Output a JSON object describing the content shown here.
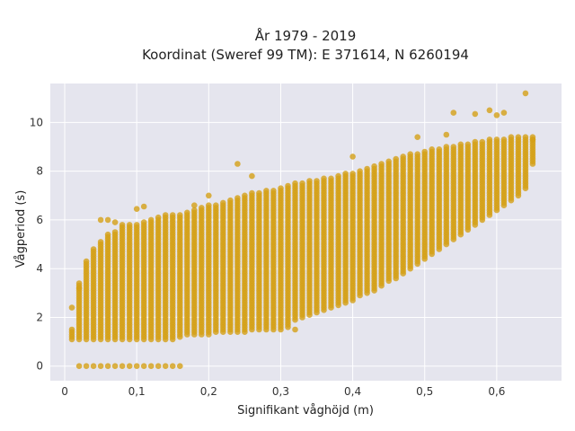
{
  "chart_data": {
    "type": "scatter",
    "title_line1": "År 1979 - 2019",
    "title_line2": "Koordinat (Sweref 99 TM): E 371614, N 6260194",
    "xlabel": "Signifikant våghöjd (m)",
    "ylabel": "Vågperiod (s)",
    "xlim": [
      -0.02,
      0.69
    ],
    "ylim": [
      -0.6,
      11.6
    ],
    "xticks": [
      0,
      0.1,
      0.2,
      0.3,
      0.4,
      0.5,
      0.6
    ],
    "xtick_labels": [
      "0",
      "0,1",
      "0,2",
      "0,3",
      "0,4",
      "0,5",
      "0,6"
    ],
    "yticks": [
      0,
      2,
      4,
      6,
      8,
      10
    ],
    "ytick_labels": [
      "0",
      "2",
      "4",
      "6",
      "8",
      "10"
    ],
    "grid": true,
    "background": "#e5e5ee",
    "marker_color": "#d4a017",
    "series": [
      {
        "x_bins": [
          0.01,
          0.02,
          0.03,
          0.04,
          0.05,
          0.06,
          0.07,
          0.08,
          0.09,
          0.1,
          0.11,
          0.12,
          0.13,
          0.14,
          0.15,
          0.16,
          0.17,
          0.18,
          0.19,
          0.2,
          0.21,
          0.22,
          0.23,
          0.24,
          0.25,
          0.26,
          0.27,
          0.28,
          0.29,
          0.3,
          0.31,
          0.32,
          0.33,
          0.34,
          0.35,
          0.36,
          0.37,
          0.38,
          0.39,
          0.4,
          0.41,
          0.42,
          0.43,
          0.44,
          0.45,
          0.46,
          0.47,
          0.48,
          0.49,
          0.5,
          0.51,
          0.52,
          0.53,
          0.54,
          0.55,
          0.56,
          0.57,
          0.58,
          0.59,
          0.6,
          0.61,
          0.62,
          0.63,
          0.64,
          0.65
        ],
        "y_min": [
          1.1,
          1.1,
          1.1,
          1.1,
          1.1,
          1.1,
          1.1,
          1.1,
          1.1,
          1.1,
          1.1,
          1.1,
          1.1,
          1.1,
          1.1,
          1.2,
          1.3,
          1.3,
          1.3,
          1.3,
          1.4,
          1.4,
          1.4,
          1.4,
          1.4,
          1.5,
          1.5,
          1.5,
          1.5,
          1.5,
          1.6,
          1.9,
          2.0,
          2.1,
          2.2,
          2.3,
          2.4,
          2.5,
          2.6,
          2.7,
          2.9,
          3.0,
          3.1,
          3.3,
          3.5,
          3.6,
          3.8,
          4.0,
          4.2,
          4.4,
          4.6,
          4.8,
          5.0,
          5.2,
          5.4,
          5.6,
          5.8,
          6.0,
          6.2,
          6.4,
          6.6,
          6.8,
          7.0,
          7.3,
          8.3
        ],
        "y_max": [
          1.5,
          3.4,
          4.3,
          4.8,
          5.1,
          5.4,
          5.5,
          5.7,
          5.8,
          5.8,
          5.9,
          6.0,
          6.1,
          6.1,
          6.2,
          6.2,
          6.3,
          6.4,
          6.5,
          6.6,
          6.6,
          6.7,
          6.8,
          6.9,
          7.0,
          7.1,
          7.1,
          7.2,
          7.2,
          7.3,
          7.4,
          7.5,
          7.5,
          7.6,
          7.6,
          7.7,
          7.7,
          7.8,
          7.9,
          7.9,
          8.0,
          8.1,
          8.2,
          8.3,
          8.4,
          8.5,
          8.6,
          8.7,
          8.7,
          8.8,
          8.9,
          8.9,
          9.0,
          9.0,
          9.1,
          9.1,
          9.2,
          9.2,
          9.3,
          9.3,
          9.3,
          9.4,
          9.4,
          9.4,
          9.4
        ],
        "zero_row_x": [
          0.02,
          0.03,
          0.04,
          0.05,
          0.06,
          0.07,
          0.08,
          0.09,
          0.1,
          0.11,
          0.12,
          0.13,
          0.14,
          0.15,
          0.16
        ],
        "outliers": [
          [
            0.01,
            2.4
          ],
          [
            0.02,
            3.2
          ],
          [
            0.05,
            6.0
          ],
          [
            0.06,
            6.0
          ],
          [
            0.07,
            5.9
          ],
          [
            0.08,
            5.8
          ],
          [
            0.1,
            6.45
          ],
          [
            0.11,
            6.55
          ],
          [
            0.14,
            6.2
          ],
          [
            0.18,
            6.6
          ],
          [
            0.2,
            7.0
          ],
          [
            0.24,
            8.3
          ],
          [
            0.26,
            7.8
          ],
          [
            0.32,
            1.5
          ],
          [
            0.4,
            8.6
          ],
          [
            0.49,
            9.4
          ],
          [
            0.53,
            9.5
          ],
          [
            0.54,
            10.4
          ],
          [
            0.57,
            10.35
          ],
          [
            0.59,
            10.5
          ],
          [
            0.6,
            10.3
          ],
          [
            0.61,
            10.4
          ],
          [
            0.64,
            11.2
          ],
          [
            0.65,
            9.3
          ]
        ]
      }
    ]
  }
}
